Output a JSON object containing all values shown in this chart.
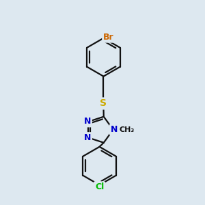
{
  "background_color": "#dde8f0",
  "bond_color": "#111111",
  "bond_width": 1.6,
  "atom_colors": {
    "Br": "#cc6600",
    "S": "#ccaa00",
    "N": "#0000cc",
    "Cl": "#00bb00",
    "C": "#111111"
  },
  "fig_width": 3.0,
  "fig_height": 3.0,
  "dpi": 100
}
